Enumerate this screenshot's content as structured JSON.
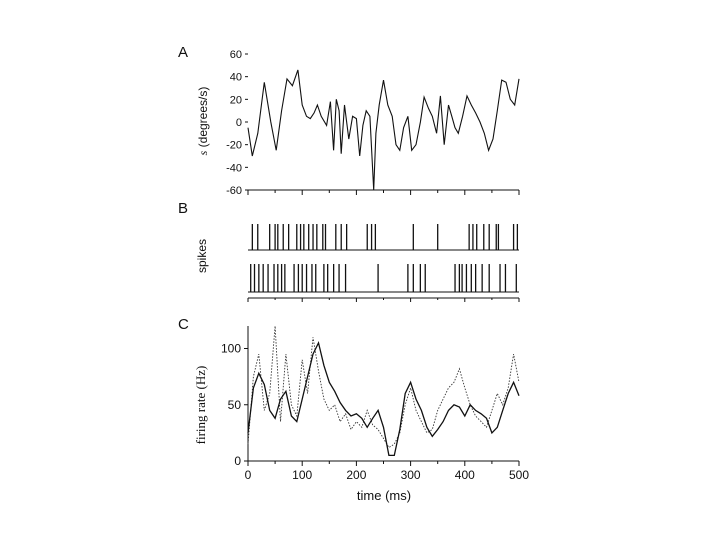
{
  "chart_data": [
    {
      "panel": "A",
      "type": "line",
      "ylabel_var": "s",
      "ylabel_unit": "(degrees/s)",
      "yticks": [
        "60",
        "40",
        "20",
        "0",
        "-20",
        "-40",
        "-60"
      ],
      "ylim": [
        -60,
        60
      ],
      "xlim": [
        0,
        500
      ],
      "x": [
        0,
        8,
        18,
        30,
        42,
        52,
        62,
        72,
        82,
        92,
        100,
        108,
        115,
        122,
        128,
        135,
        145,
        152,
        158,
        163,
        168,
        172,
        178,
        186,
        193,
        200,
        206,
        212,
        218,
        225,
        232,
        236,
        242,
        250,
        258,
        266,
        273,
        280,
        287,
        295,
        302,
        310,
        318,
        325,
        333,
        340,
        348,
        355,
        362,
        370,
        376,
        382,
        388,
        396,
        404,
        412,
        420,
        428,
        436,
        444,
        452,
        460,
        468,
        476,
        484,
        492,
        500
      ],
      "values": [
        -5,
        -30,
        -10,
        35,
        0,
        -25,
        10,
        38,
        32,
        46,
        15,
        5,
        3,
        8,
        15,
        5,
        -3,
        18,
        -25,
        20,
        10,
        -28,
        15,
        -15,
        5,
        3,
        -30,
        -3,
        10,
        5,
        -60,
        -10,
        15,
        37,
        15,
        5,
        -20,
        -25,
        -5,
        5,
        -25,
        -20,
        0,
        22,
        12,
        5,
        -10,
        23,
        -20,
        15,
        5,
        -5,
        -10,
        5,
        23,
        15,
        8,
        0,
        -10,
        -25,
        -15,
        10,
        37,
        35,
        20,
        15,
        38
      ]
    },
    {
      "panel": "B",
      "type": "scatter",
      "ylabel": "spikes",
      "xlim": [
        0,
        500
      ],
      "series": [
        {
          "values": [
            8,
            18,
            40,
            50,
            55,
            65,
            75,
            90,
            97,
            103,
            112,
            120,
            127,
            138,
            143,
            162,
            172,
            182,
            220,
            228,
            235,
            305,
            350,
            408,
            415,
            422,
            435,
            445,
            458,
            462,
            490,
            497
          ]
        },
        {
          "values": [
            5,
            12,
            20,
            28,
            37,
            48,
            55,
            62,
            68,
            85,
            93,
            100,
            108,
            118,
            125,
            140,
            147,
            158,
            168,
            180,
            240,
            295,
            305,
            318,
            327,
            382,
            390,
            395,
            403,
            412,
            420,
            432,
            445,
            465,
            475,
            495
          ]
        }
      ]
    },
    {
      "panel": "C",
      "type": "line",
      "ylabel": "firing rate  (Hz)",
      "xlabel": "time  (ms)",
      "xticks": [
        "0",
        "100",
        "200",
        "300",
        "400",
        "500"
      ],
      "yticks": [
        "0",
        "50",
        "100"
      ],
      "xlim": [
        0,
        500
      ],
      "ylim": [
        0,
        120
      ],
      "series": [
        {
          "style": "solid",
          "x": [
            0,
            10,
            20,
            30,
            40,
            50,
            60,
            70,
            80,
            90,
            100,
            110,
            120,
            130,
            140,
            150,
            160,
            170,
            180,
            190,
            200,
            210,
            220,
            230,
            240,
            250,
            260,
            270,
            280,
            290,
            300,
            310,
            320,
            330,
            340,
            350,
            360,
            370,
            380,
            390,
            400,
            410,
            420,
            430,
            440,
            450,
            460,
            470,
            480,
            490,
            500
          ],
          "values": [
            25,
            65,
            78,
            68,
            45,
            38,
            55,
            62,
            40,
            35,
            55,
            75,
            95,
            105,
            85,
            70,
            62,
            52,
            45,
            40,
            42,
            38,
            30,
            38,
            45,
            30,
            5,
            5,
            28,
            60,
            70,
            55,
            45,
            30,
            22,
            28,
            35,
            45,
            50,
            48,
            40,
            50,
            45,
            42,
            38,
            25,
            30,
            45,
            60,
            70,
            58
          ]
        },
        {
          "style": "dotted",
          "x": [
            0,
            10,
            20,
            30,
            40,
            50,
            60,
            70,
            80,
            90,
            100,
            110,
            120,
            130,
            140,
            150,
            160,
            170,
            180,
            190,
            200,
            210,
            220,
            230,
            240,
            250,
            260,
            270,
            280,
            290,
            300,
            310,
            320,
            330,
            340,
            350,
            360,
            370,
            380,
            390,
            400,
            410,
            420,
            430,
            440,
            450,
            460,
            470,
            480,
            490,
            500
          ],
          "values": [
            15,
            75,
            95,
            45,
            60,
            120,
            35,
            95,
            50,
            40,
            90,
            60,
            110,
            80,
            55,
            45,
            50,
            35,
            42,
            28,
            35,
            30,
            45,
            32,
            28,
            20,
            12,
            15,
            25,
            50,
            65,
            45,
            35,
            25,
            28,
            45,
            55,
            65,
            70,
            82,
            65,
            50,
            40,
            35,
            30,
            45,
            60,
            50,
            65,
            95,
            70
          ]
        }
      ]
    }
  ]
}
